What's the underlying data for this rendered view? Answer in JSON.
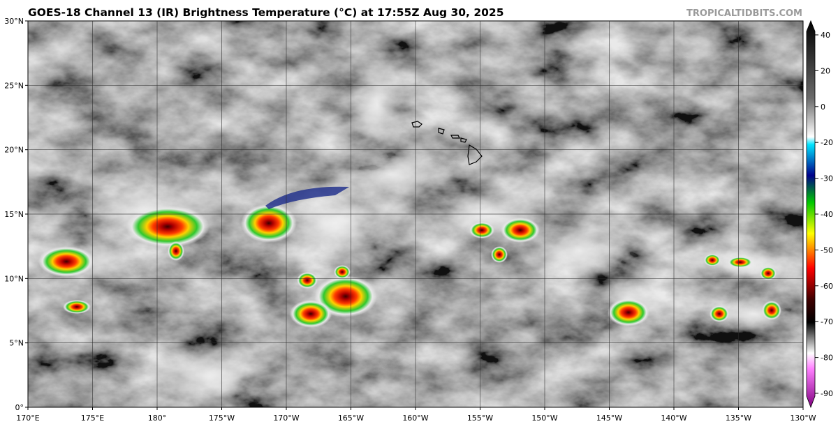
{
  "header": {
    "title": "GOES-18 Channel 13 (IR) Brightness Temperature (°C) at 17:55Z Aug 30, 2025",
    "credit": "TROPICALTIDBITS.COM"
  },
  "map": {
    "lat_labels": [
      "0°",
      "5°N",
      "10°N",
      "15°N",
      "20°N",
      "25°N",
      "30°N"
    ],
    "lon_labels": [
      "170°E",
      "175°E",
      "180°",
      "175°W",
      "170°W",
      "165°W",
      "160°W",
      "155°W",
      "150°W",
      "145°W",
      "140°W",
      "135°W",
      "130°W"
    ]
  },
  "colorbar": {
    "ticks": [
      40,
      20,
      0,
      -20,
      -30,
      -40,
      -50,
      -60,
      -70,
      -80,
      -90
    ]
  }
}
